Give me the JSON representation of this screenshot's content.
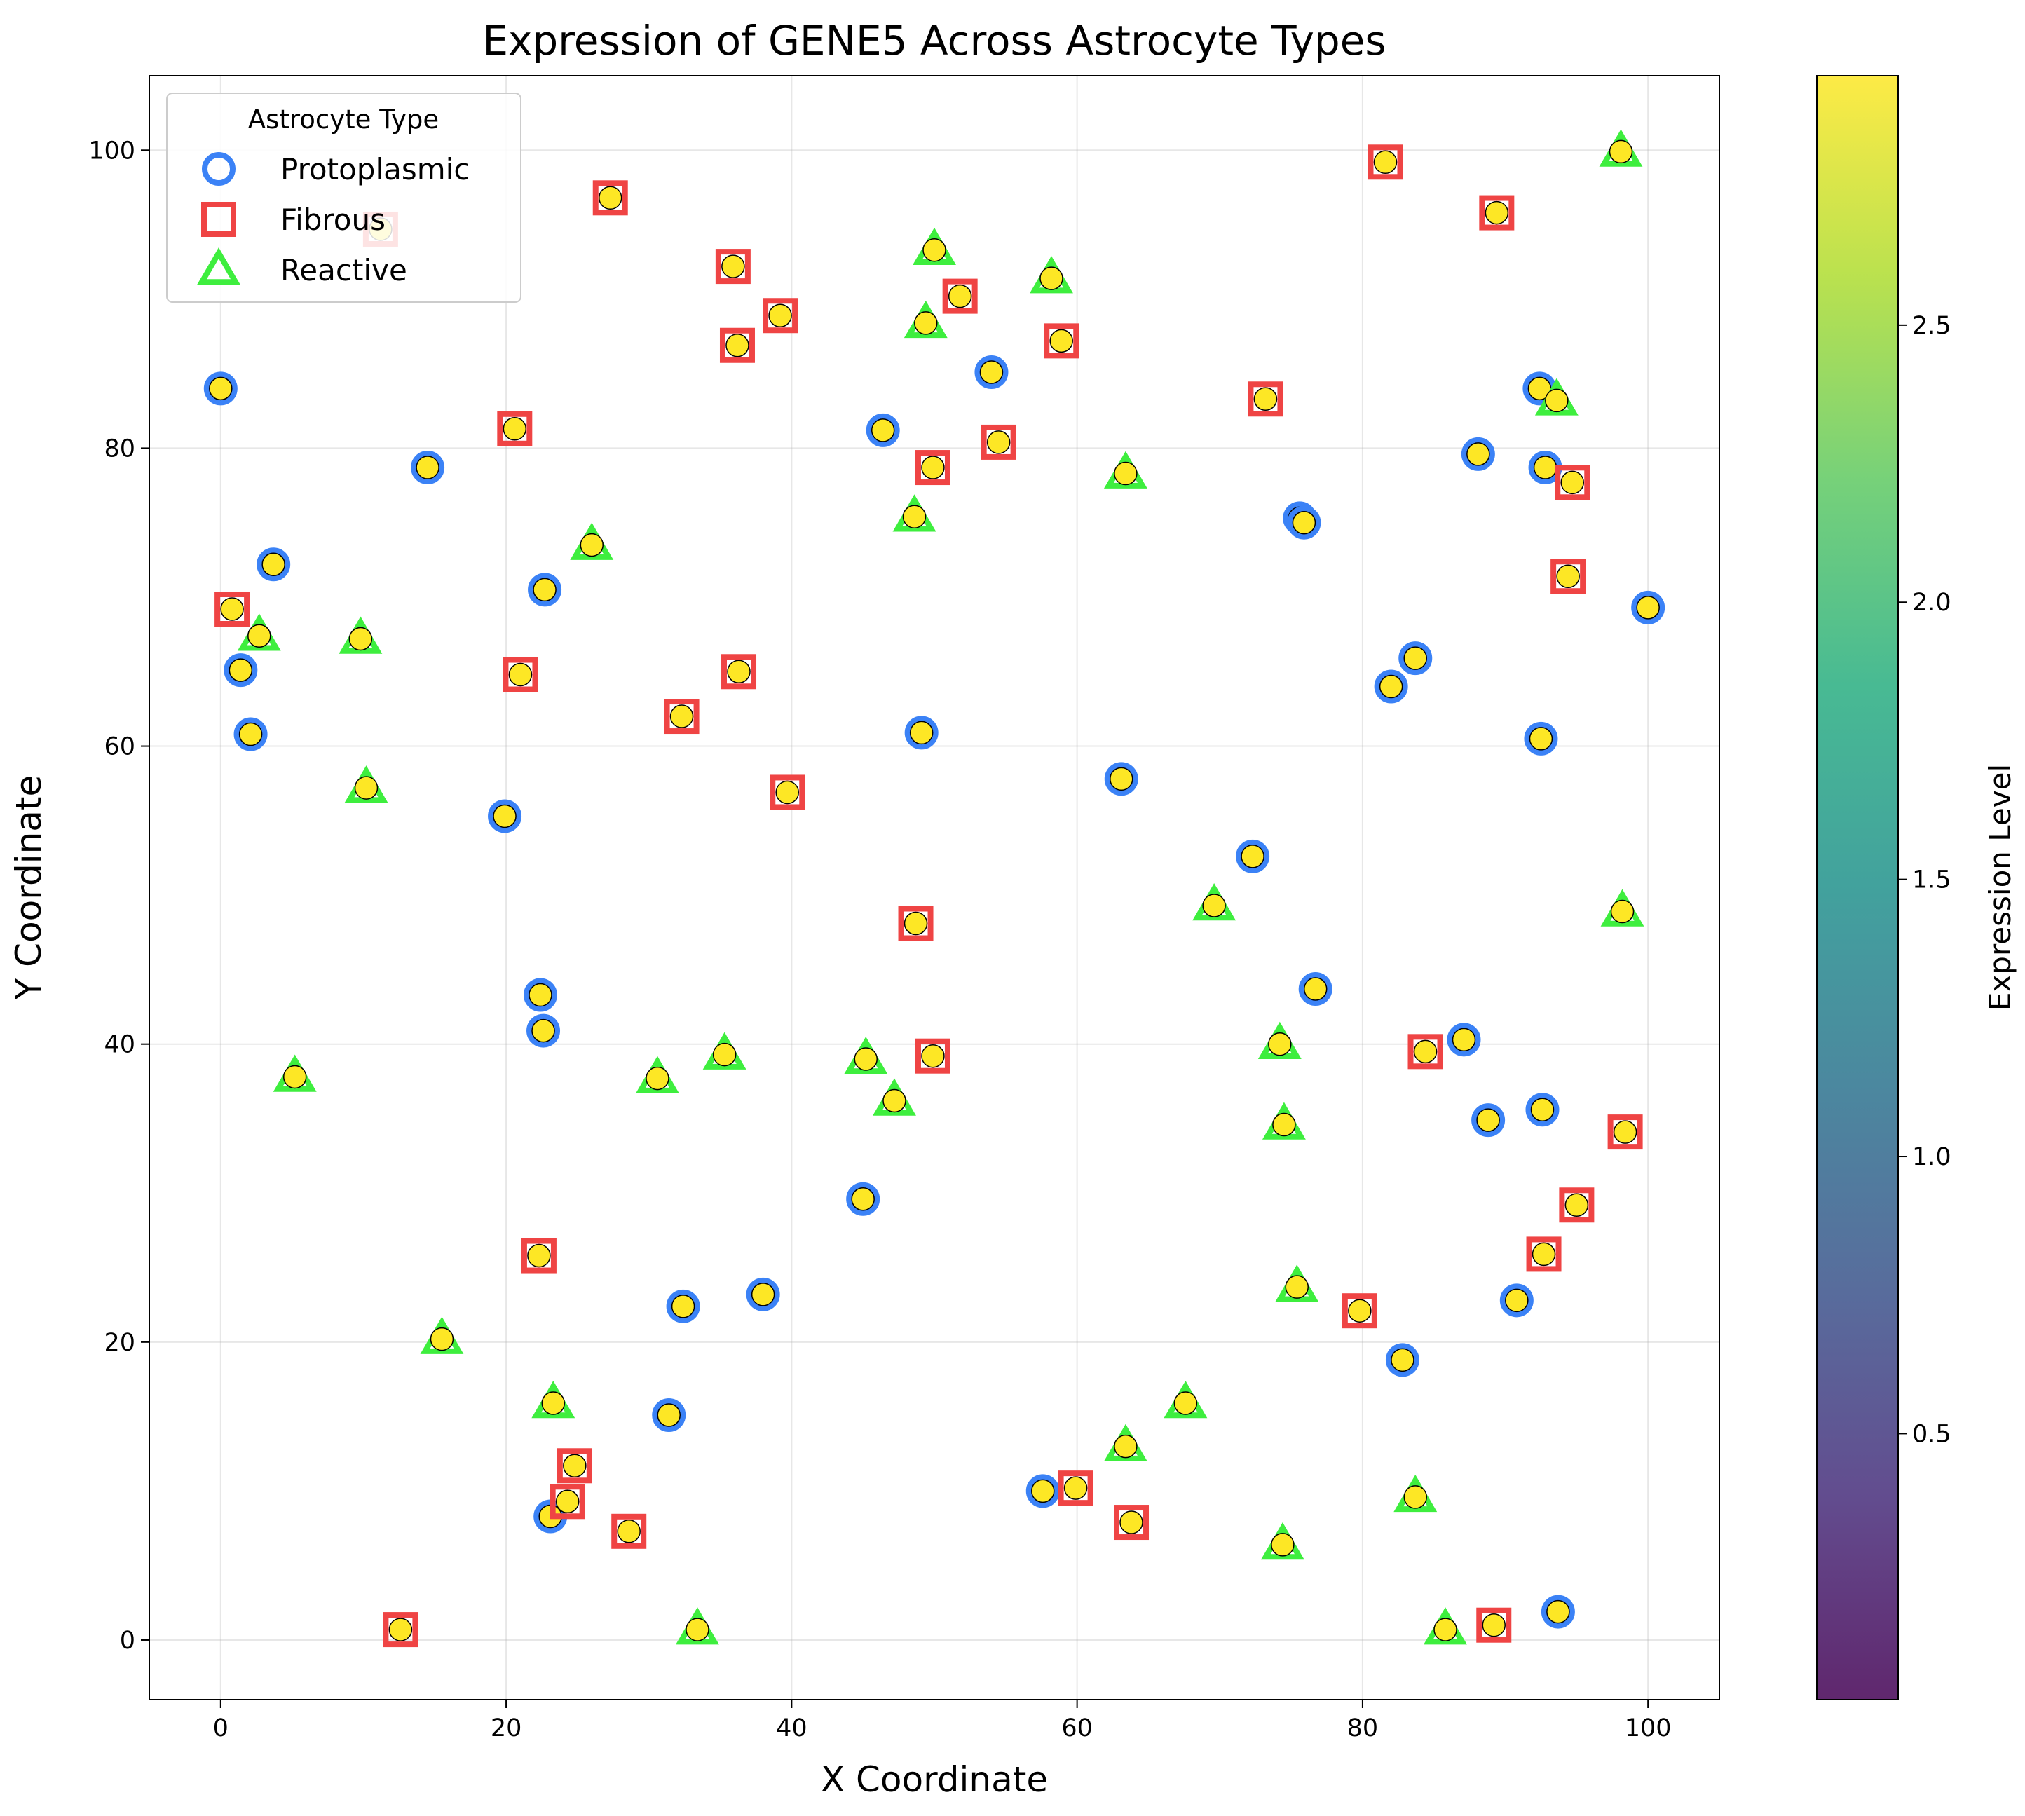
{
  "chart_data": {
    "type": "scatter",
    "title": "Expression of GENE5 Across Astrocyte Types",
    "xlabel": "X Coordinate",
    "ylabel": "Y Coordinate",
    "xlim": [
      -5,
      105
    ],
    "ylim": [
      -4,
      105
    ],
    "x_ticks": [
      0,
      20,
      40,
      60,
      80,
      100
    ],
    "y_ticks": [
      0,
      20,
      40,
      60,
      80,
      100
    ],
    "grid": true,
    "legend": {
      "title": "Astrocyte Type",
      "placement": "top-left",
      "entries": [
        "Protoplasmic",
        "Fibrous",
        "Reactive"
      ]
    },
    "colorbar": {
      "label": "Expression Level",
      "colormap": "viridis",
      "range": [
        0.02,
        2.95
      ],
      "ticks": [
        0.5,
        1.0,
        1.5,
        2.0,
        2.5
      ]
    },
    "point_fill_color": "#fde725",
    "series": [
      {
        "name": "Protoplasmic",
        "marker": "circle",
        "edge_color": "#3b82f6",
        "points": [
          [
            0,
            84
          ],
          [
            3.7,
            72.2
          ],
          [
            1.4,
            65.1
          ],
          [
            2.1,
            60.8
          ],
          [
            14.5,
            78.7
          ],
          [
            22.7,
            70.5
          ],
          [
            19.9,
            55.3
          ],
          [
            22.4,
            43.3
          ],
          [
            22.6,
            40.9
          ],
          [
            32.4,
            22.4
          ],
          [
            38,
            23.2
          ],
          [
            31.4,
            15.1
          ],
          [
            23.1,
            8.3
          ],
          [
            45,
            29.6
          ],
          [
            49.1,
            60.9
          ],
          [
            46.4,
            81.2
          ],
          [
            54,
            85.1
          ],
          [
            63.1,
            57.8
          ],
          [
            72.3,
            52.6
          ],
          [
            75.6,
            75.3
          ],
          [
            75.9,
            75
          ],
          [
            76.7,
            43.7
          ],
          [
            57.6,
            10
          ],
          [
            82,
            64
          ],
          [
            83.7,
            65.9
          ],
          [
            88.1,
            79.6
          ],
          [
            92.4,
            84
          ],
          [
            92.8,
            78.7
          ],
          [
            92.5,
            60.5
          ],
          [
            87.1,
            40.3
          ],
          [
            88.8,
            34.9
          ],
          [
            92.6,
            35.6
          ],
          [
            90.8,
            22.8
          ],
          [
            82.8,
            18.8
          ],
          [
            93.7,
            1.9
          ],
          [
            100,
            69.3
          ]
        ]
      },
      {
        "name": "Fibrous",
        "marker": "square",
        "edge_color": "#ef4444",
        "points": [
          [
            0.8,
            69.2
          ],
          [
            11.2,
            94.7
          ],
          [
            20.6,
            81.3
          ],
          [
            21,
            64.8
          ],
          [
            27.3,
            96.8
          ],
          [
            35.9,
            92.2
          ],
          [
            36.2,
            86.9
          ],
          [
            39.2,
            88.9
          ],
          [
            36.3,
            65
          ],
          [
            32.3,
            62
          ],
          [
            39.7,
            56.9
          ],
          [
            22.3,
            25.8
          ],
          [
            24.8,
            11.7
          ],
          [
            24.3,
            9.3
          ],
          [
            28.6,
            7.3
          ],
          [
            12.6,
            0.7
          ],
          [
            48.7,
            48.1
          ],
          [
            49.9,
            39.2
          ],
          [
            49.9,
            78.7
          ],
          [
            51.8,
            90.2
          ],
          [
            54.5,
            80.4
          ],
          [
            58.9,
            87.2
          ],
          [
            59.9,
            10.2
          ],
          [
            63.8,
            7.9
          ],
          [
            73.2,
            83.3
          ],
          [
            81.6,
            99.2
          ],
          [
            89.4,
            95.8
          ],
          [
            94.7,
            77.7
          ],
          [
            94.4,
            71.4
          ],
          [
            84.4,
            39.5
          ],
          [
            79.8,
            22.1
          ],
          [
            92.7,
            25.9
          ],
          [
            95,
            29.2
          ],
          [
            98.4,
            34.1
          ],
          [
            89.2,
            1
          ]
        ]
      },
      {
        "name": "Reactive",
        "marker": "triangle",
        "edge_color": "#3eee3e",
        "points": [
          [
            2.7,
            67.4
          ],
          [
            9.8,
            67.2
          ],
          [
            10.2,
            57.2
          ],
          [
            5.2,
            37.8
          ],
          [
            15.5,
            20.2
          ],
          [
            26,
            73.5
          ],
          [
            30.6,
            37.7
          ],
          [
            35.3,
            39.3
          ],
          [
            23.3,
            15.9
          ],
          [
            33.4,
            0.7
          ],
          [
            45.2,
            39
          ],
          [
            47.2,
            36.2
          ],
          [
            48.6,
            75.4
          ],
          [
            49.4,
            88.4
          ],
          [
            50,
            93.3
          ],
          [
            58.2,
            91.4
          ],
          [
            63.4,
            78.3
          ],
          [
            63.4,
            13
          ],
          [
            67.6,
            15.9
          ],
          [
            69.6,
            49.3
          ],
          [
            74.2,
            40
          ],
          [
            74.5,
            34.6
          ],
          [
            75.4,
            23.7
          ],
          [
            74.4,
            6.4
          ],
          [
            83.7,
            9.6
          ],
          [
            85.8,
            0.7
          ],
          [
            93.6,
            83.2
          ],
          [
            98.1,
            99.9
          ],
          [
            98.2,
            48.9
          ]
        ]
      }
    ]
  }
}
